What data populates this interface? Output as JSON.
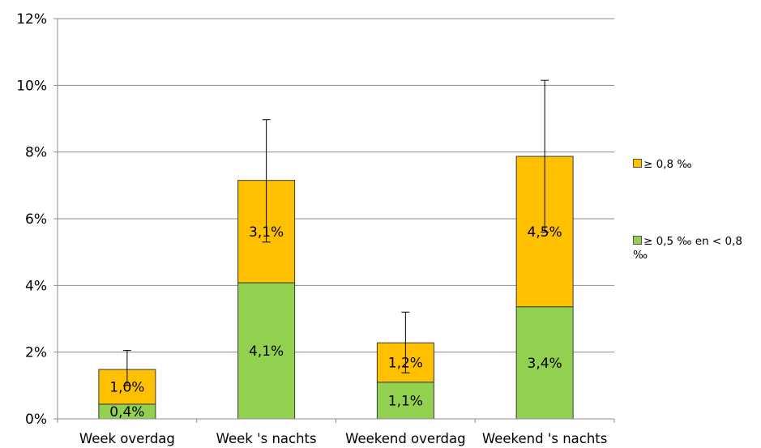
{
  "chart_data": {
    "type": "bar",
    "stacked": true,
    "categories": [
      "Week overdag",
      "Week 's nachts",
      "Weekend overdag",
      "Weekend 's nachts"
    ],
    "series": [
      {
        "name": "≥ 0,5 ‰ en < 0,8 ‰",
        "color": "#92d050",
        "values": [
          0.44,
          4.08,
          1.1,
          3.36
        ],
        "labels": [
          "0,4%",
          "4,1%",
          "1,1%",
          "3,4%"
        ]
      },
      {
        "name": "≥ 0,8 ‰",
        "color": "#ffc000",
        "values": [
          1.04,
          3.07,
          1.18,
          4.51
        ],
        "labels": [
          "1,0%",
          "3,1%",
          "1,2%",
          "4,5%"
        ]
      }
    ],
    "error_bars": [
      {
        "low": 1.0,
        "high": 2.05
      },
      {
        "low": 5.3,
        "high": 8.97
      },
      {
        "low": 1.38,
        "high": 3.2
      },
      {
        "low": 5.6,
        "high": 10.15
      }
    ],
    "ylim": [
      0,
      12
    ],
    "yticks": [
      0,
      2,
      4,
      6,
      8,
      10,
      12
    ],
    "ytick_labels": [
      "0%",
      "2%",
      "4%",
      "6%",
      "8%",
      "10%",
      "12%"
    ],
    "grid": true,
    "legend_position": "right"
  },
  "legend": {
    "item_top_label": "≥ 0,8 ‰",
    "item_bottom_label": "≥ 0,5 ‰ en < 0,8 ‰"
  }
}
